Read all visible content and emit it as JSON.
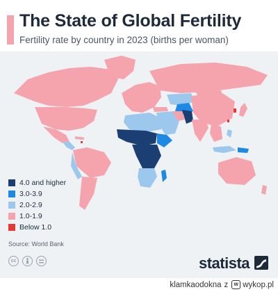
{
  "header": {
    "title": "The State of Global Fertility",
    "subtitle": "Fertility rate by country in 2023 (births per woman)"
  },
  "legend": [
    {
      "label": "4.0 and higher",
      "color": "#1c3f73"
    },
    {
      "label": "3.0-3.9",
      "color": "#1e88e5"
    },
    {
      "label": "2.0-2.9",
      "color": "#9cc8ee"
    },
    {
      "label": "1.0-1.9",
      "color": "#f5a3ac"
    },
    {
      "label": "Below 1.0",
      "color": "#e53935"
    }
  ],
  "source": "Source: World Bank",
  "brand": "statista",
  "footer": {
    "author": "klamkaodokna",
    "connector": "z",
    "site_icon_letter": "w",
    "site": "wykop.pl"
  },
  "icons": [
    "creative-commons-icon",
    "attribution-icon",
    "equals-icon",
    "statista-logo-icon",
    "wykop-icon"
  ]
}
